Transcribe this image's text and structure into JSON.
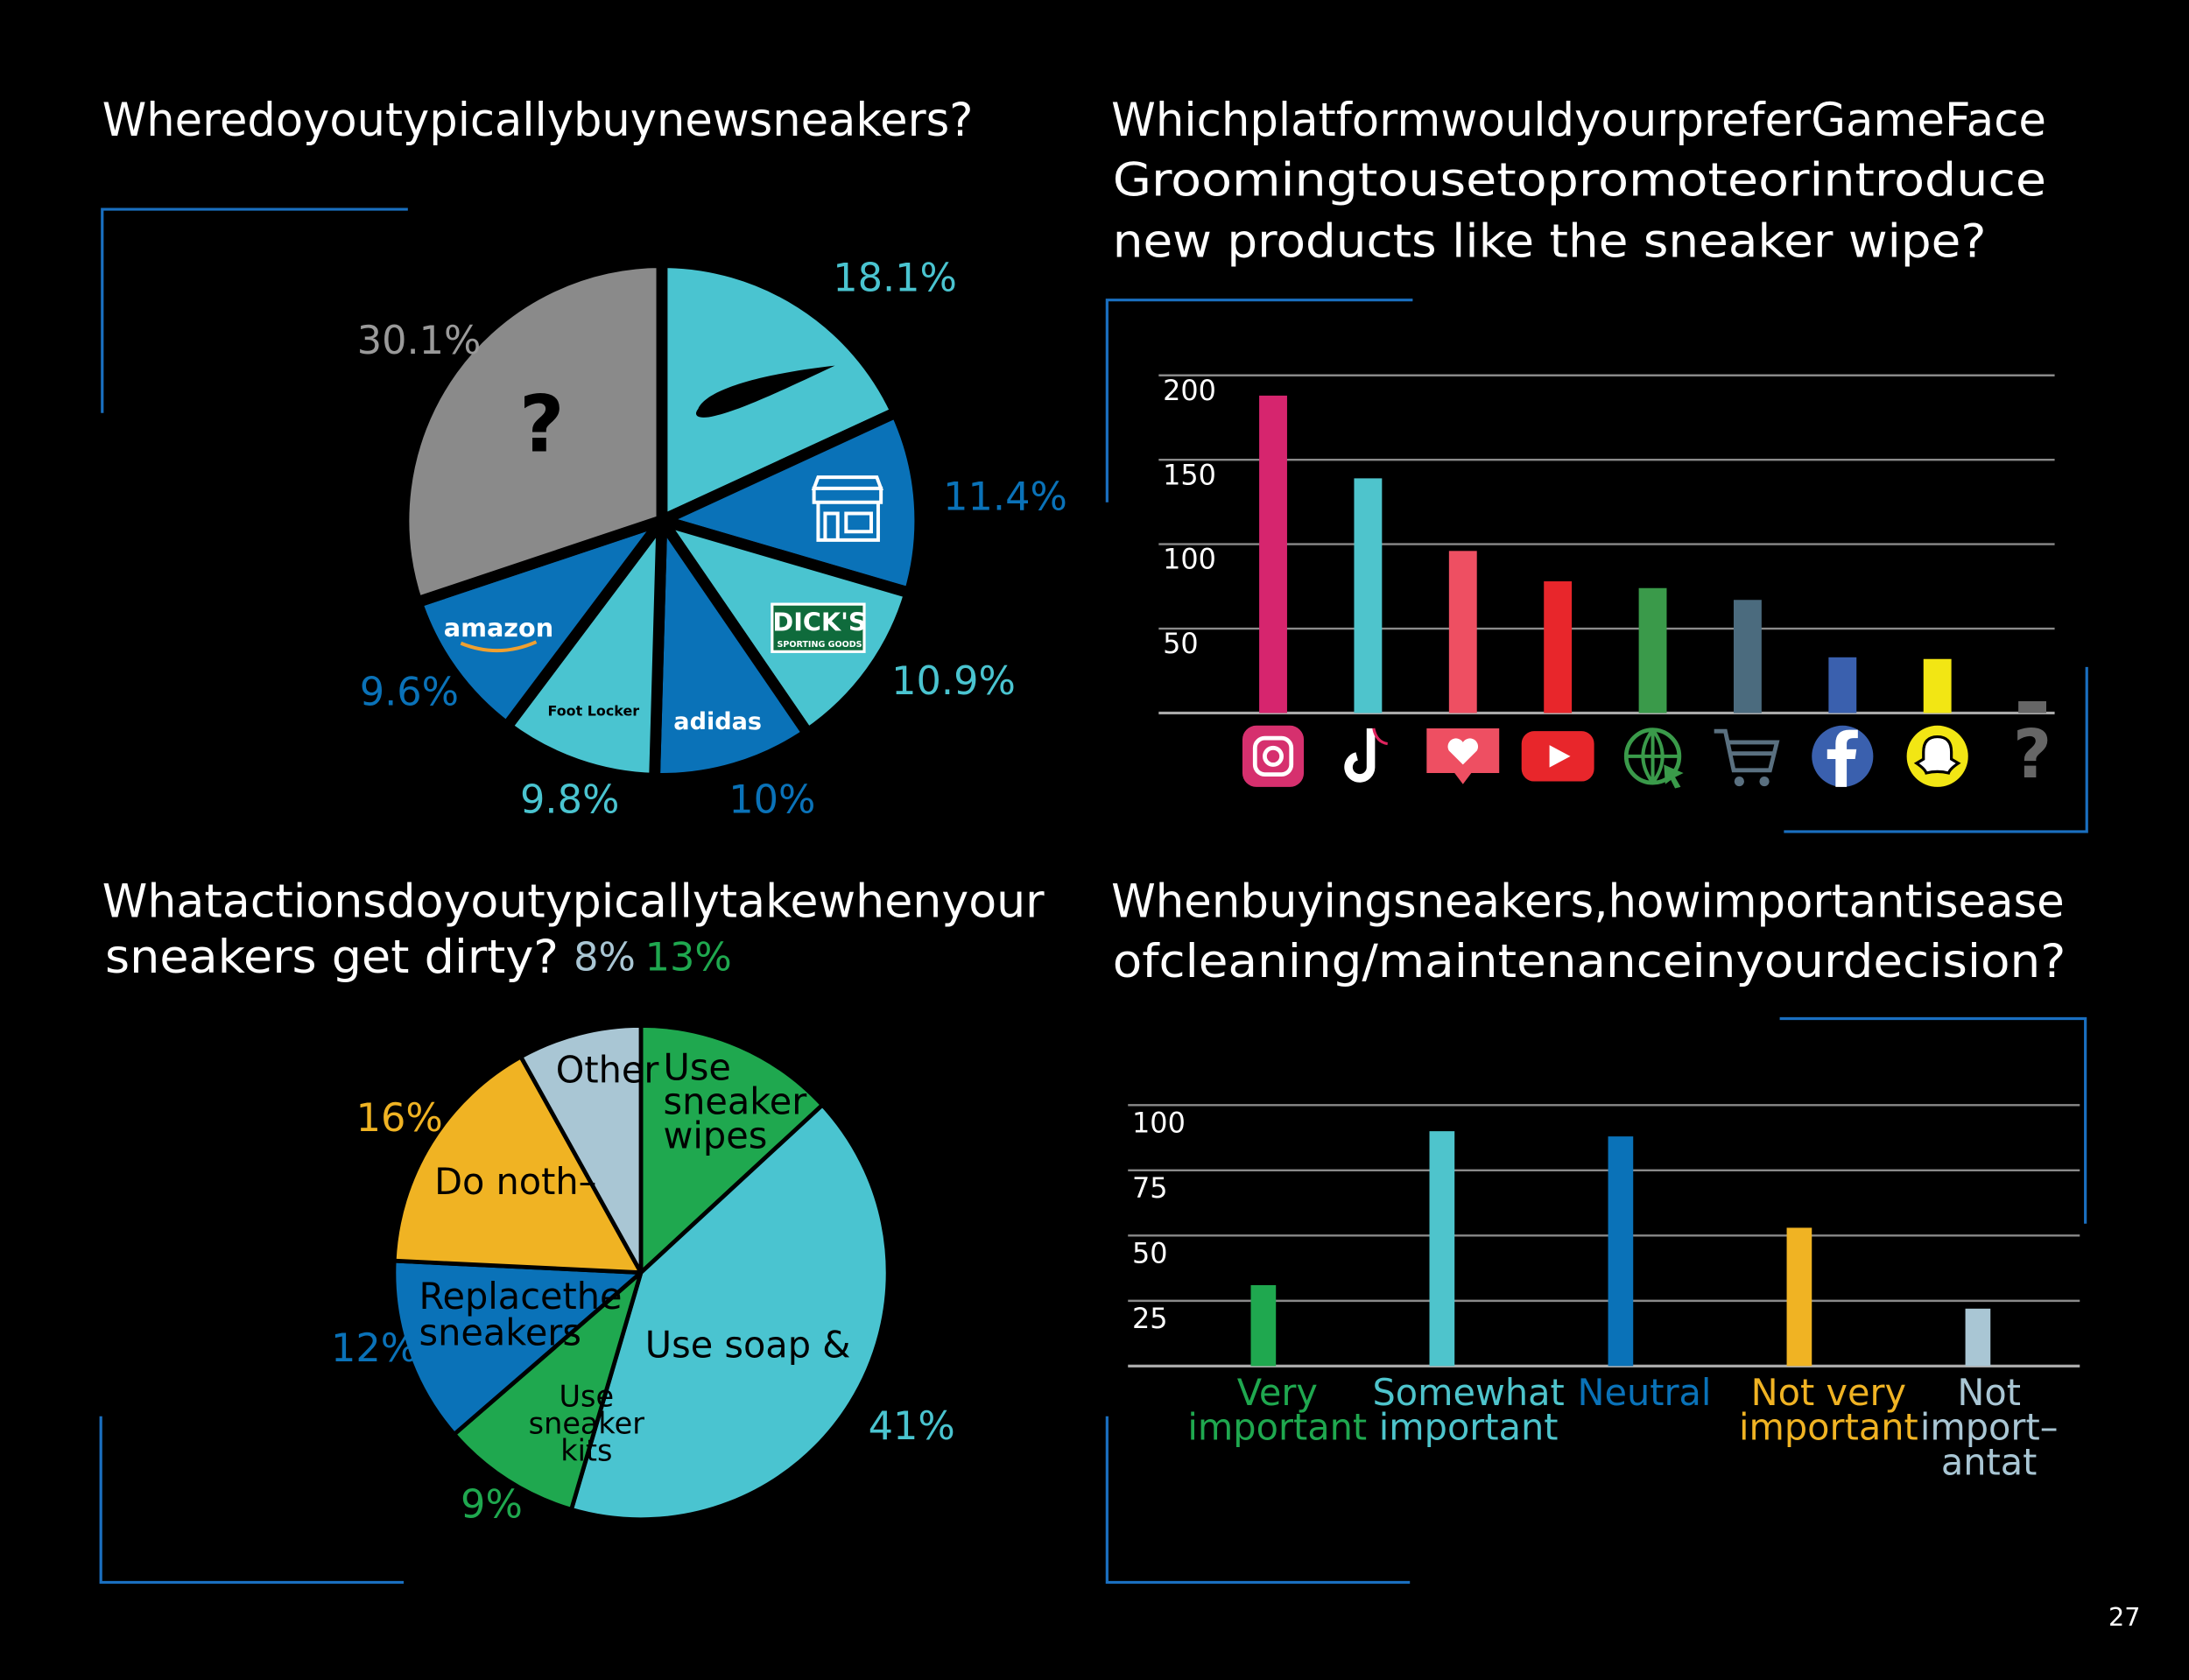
{
  "page_number": "27",
  "chart_data": [
    {
      "type": "pie",
      "title": [
        "Wheredoyoutypicallybuynewsneakers?"
      ],
      "categories": [
        null,
        null,
        [
          "DICK'S",
          "SPORTING GOODS"
        ],
        [
          "adidas"
        ],
        [
          "Foot Locker"
        ],
        [
          "amazon"
        ],
        [
          "?"
        ]
      ],
      "values": [
        18.1,
        11.4,
        10.9,
        10,
        9.8,
        9.6,
        30.1
      ],
      "value_labels": [
        "18.1%",
        "11.4%",
        "10.9%",
        "10%",
        "9.8%",
        "9.6%",
        "30.1%"
      ],
      "colors": [
        "#4ac4d0",
        "#0a72b8",
        "#4ac4d0",
        "#0a72b8",
        "#4ac4d0",
        "#0a72b8",
        "#8a8a8a"
      ]
    },
    {
      "type": "bar",
      "title": [
        "WhichplatformwouldyourpreferGameFace",
        "Groomingtousetopromoteorintroduce",
        "new products like the sneaker wipe?"
      ],
      "categories": [
        null,
        null,
        null,
        null,
        null,
        null,
        null,
        null,
        "?"
      ],
      "values": [
        188,
        139,
        96,
        78,
        74,
        67,
        33,
        32,
        7
      ],
      "colors": [
        "#d6256e",
        "#4ec4cc",
        "#ee4f62",
        "#e8262b",
        "#3a9a4a",
        "#4b6b7e",
        "#3a60ae",
        "#f2e614",
        "#666666"
      ],
      "ylim": [
        0,
        200
      ],
      "yticks": [
        50,
        100,
        150,
        200
      ],
      "grid": true
    },
    {
      "type": "pie",
      "title": [
        "Whatactionsdoyoutypicallytakewhenyour",
        "sneakers get dirty?"
      ],
      "categories": [
        [
          "Use",
          "sneaker",
          "wipes"
        ],
        [
          "Use soap &"
        ],
        [
          "Use",
          "sneaker",
          "kits"
        ],
        [
          "Replacethe",
          "sneakers"
        ],
        [
          "Do noth–"
        ],
        [
          "Other"
        ]
      ],
      "values": [
        13,
        41,
        9,
        12,
        16,
        8
      ],
      "value_labels": [
        "13%",
        "41%",
        "9%",
        "12%",
        "16%",
        "8%"
      ],
      "colors": [
        "#1fa84f",
        "#4ac4d0",
        "#1fa84f",
        "#0a72b8",
        "#f0b323",
        "#a9c6d4"
      ]
    },
    {
      "type": "bar",
      "title": [
        "Whenbuyingsneakers,howimportantisease",
        "ofcleaning/maintenanceinyourdecision?"
      ],
      "categories": [
        [
          "Very",
          "important"
        ],
        [
          "Somewhat",
          "important"
        ],
        [
          "Neutral"
        ],
        [
          "Not very",
          "important"
        ],
        [
          "Not",
          "import–",
          "antat"
        ]
      ],
      "values": [
        31,
        90,
        88,
        53,
        22
      ],
      "colors": [
        "#1fa84f",
        "#4ec4cc",
        "#0a72b8",
        "#f0b323",
        "#a9c6d4"
      ],
      "ylim": [
        0,
        100
      ],
      "yticks": [
        25,
        50,
        75,
        100
      ],
      "grid": true
    }
  ]
}
